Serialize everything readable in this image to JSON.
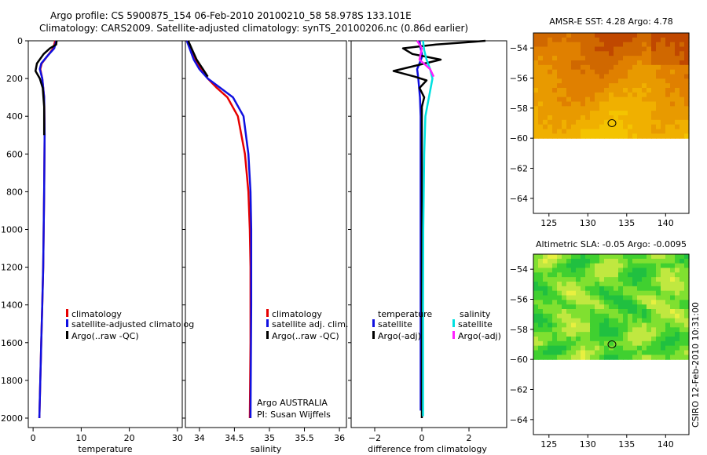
{
  "header": {
    "line1": "Argo profile: CS 5900875_154 06-Feb-2010 20100210_58 58.978S 133.101E",
    "line2": "Climatology: CARS2009. Satellite-adjusted climatology: synTS_20100206.nc (0.86d earlier)"
  },
  "footer": {
    "side_label": "CSIRO 12-Feb-2010 10:31:00"
  },
  "colors": {
    "climatology": "#e60000",
    "satellite": "#1010e0",
    "argo": "#000000",
    "sat_salinity": "#00e0e0",
    "argo_salinity": "#ff20ff"
  },
  "chart_data": [
    {
      "type": "line",
      "id": "temperature",
      "xlabel": "temperature",
      "xlim": [
        -1,
        31
      ],
      "ylim": [
        0,
        2050
      ],
      "xticks": [
        0,
        10,
        20,
        30
      ],
      "yticks": [
        0,
        200,
        400,
        600,
        800,
        1000,
        1200,
        1400,
        1600,
        1800,
        2000
      ],
      "legend": [
        "climatology",
        "satellite-adjusted climatolog",
        "Argo(..raw -QC)"
      ],
      "series": [
        {
          "name": "climatology",
          "x": [
            4.6,
            4.2,
            3.0,
            1.8,
            1.5,
            1.9,
            2.3,
            2.4,
            2.3,
            2.2,
            2.1,
            1.9,
            1.7,
            1.5,
            1.3
          ],
          "y": [
            0,
            40,
            80,
            120,
            150,
            200,
            300,
            500,
            800,
            1000,
            1200,
            1400,
            1600,
            1800,
            2000
          ]
        },
        {
          "name": "satellite-adjusted",
          "x": [
            4.8,
            4.4,
            3.0,
            1.7,
            1.4,
            1.9,
            2.3,
            2.4,
            2.3,
            2.2,
            2.1,
            1.9,
            1.7,
            1.5,
            1.3
          ],
          "y": [
            0,
            40,
            80,
            120,
            150,
            200,
            300,
            500,
            800,
            1000,
            1200,
            1400,
            1600,
            1800,
            2000
          ]
        },
        {
          "name": "Argo",
          "x": [
            4.9,
            4.8,
            3.5,
            2.2,
            0.8,
            0.5,
            1.4,
            2.0,
            2.3,
            2.3
          ],
          "y": [
            0,
            20,
            40,
            70,
            120,
            160,
            200,
            250,
            350,
            500
          ]
        }
      ]
    },
    {
      "type": "line",
      "id": "salinity",
      "xlabel": "salinity",
      "xlim": [
        33.8,
        36.1
      ],
      "ylim": [
        0,
        2050
      ],
      "xticks": [
        34,
        34.5,
        35,
        35.5,
        36
      ],
      "yticks": [
        0,
        200,
        400,
        600,
        800,
        1000,
        1200,
        1400,
        1600,
        1800,
        2000
      ],
      "legend": [
        "climatology",
        "satellite adj. clim.",
        "Argo(..raw -QC)"
      ],
      "annotation": [
        "Argo AUSTRALIA",
        "PI: Susan Wijffels"
      ],
      "series": [
        {
          "name": "climatology",
          "x": [
            33.82,
            33.88,
            33.95,
            34.02,
            34.12,
            34.25,
            34.4,
            34.55,
            34.65,
            34.7,
            34.72,
            34.73,
            34.73,
            34.72
          ],
          "y": [
            0,
            50,
            100,
            150,
            200,
            250,
            300,
            400,
            600,
            800,
            1000,
            1200,
            1600,
            2000
          ]
        },
        {
          "name": "satellite-adjusted",
          "x": [
            33.82,
            33.87,
            33.92,
            34.0,
            34.12,
            34.3,
            34.48,
            34.63,
            34.7,
            34.73,
            34.74,
            34.74,
            34.73
          ],
          "y": [
            0,
            50,
            100,
            150,
            200,
            250,
            300,
            400,
            600,
            800,
            1000,
            1400,
            2000
          ]
        },
        {
          "name": "Argo",
          "x": [
            33.84,
            33.9,
            33.96,
            34.05,
            34.12
          ],
          "y": [
            0,
            50,
            100,
            150,
            190
          ]
        }
      ]
    },
    {
      "type": "line",
      "id": "difference",
      "xlabel": "difference from climatology",
      "xlim": [
        -3,
        3.6
      ],
      "ylim": [
        0,
        2050
      ],
      "xticks": [
        -2,
        0,
        2
      ],
      "yticks": [
        0,
        200,
        400,
        600,
        800,
        1000,
        1200,
        1400,
        1600,
        1800,
        2000
      ],
      "legend_title_left": "temperature",
      "legend_title_right": "salinity",
      "legend": [
        "satellite",
        "Argo(-adj)",
        "satellite",
        "Argo(-adj)"
      ],
      "series": [
        {
          "name": "temperature satellite",
          "x": [
            -0.1,
            -0.05,
            0.02,
            -0.1,
            -0.2,
            -0.15,
            -0.08,
            -0.05,
            -0.05,
            -0.05,
            -0.05,
            -0.05,
            -0.05,
            -0.05,
            -0.05
          ],
          "y": [
            0,
            40,
            80,
            120,
            150,
            200,
            300,
            400,
            600,
            800,
            1000,
            1200,
            1400,
            1600,
            1960
          ]
        },
        {
          "name": "temperature Argo",
          "x": [
            2.7,
            2.2,
            0.6,
            -0.8,
            -0.4,
            0.8,
            -1.2,
            -0.3,
            0.2,
            -0.1,
            0.1,
            0.0,
            0.0,
            0.0,
            0.0,
            0.0,
            0.0
          ],
          "y": [
            0,
            5,
            20,
            40,
            70,
            100,
            160,
            190,
            210,
            250,
            300,
            350,
            500,
            800,
            1200,
            1600,
            2000
          ]
        },
        {
          "name": "salinity satellite",
          "x": [
            0.05,
            0.1,
            0.2,
            0.35,
            0.45,
            0.3,
            0.15,
            0.1,
            0.08,
            0.06,
            0.05,
            0.05
          ],
          "y": [
            0,
            50,
            100,
            150,
            200,
            300,
            400,
            600,
            800,
            1000,
            1400,
            1990
          ]
        },
        {
          "name": "salinity Argo",
          "x": [
            -0.2,
            0.0,
            -0.1,
            0.35,
            0.5
          ],
          "y": [
            0,
            40,
            100,
            150,
            190
          ]
        }
      ]
    },
    {
      "type": "heatmap",
      "id": "sst-map",
      "title": "AMSR-E SST: 4.28 Argo: 4.78",
      "xlim": [
        123,
        143
      ],
      "ylim": [
        -65,
        -53
      ],
      "xticks": [
        125,
        130,
        135,
        140
      ],
      "yticks": [
        -54,
        -56,
        -58,
        -60,
        -62,
        -64
      ],
      "data_extent": {
        "lat_min": -60,
        "lat_max": -53
      },
      "marker": {
        "lon": 133.1,
        "lat": -59.0
      },
      "colors": [
        "#c04800",
        "#d06800",
        "#e08000",
        "#e89a00",
        "#f0b000",
        "#f4c400"
      ]
    },
    {
      "type": "heatmap",
      "id": "sla-map",
      "title": "Altimetric SLA: -0.05 Argo: -0.0095",
      "xlim": [
        123,
        143
      ],
      "ylim": [
        -65,
        -53
      ],
      "xticks": [
        125,
        130,
        135,
        140
      ],
      "yticks": [
        -54,
        -56,
        -58,
        -60,
        -62,
        -64
      ],
      "data_extent": {
        "lat_min": -60,
        "lat_max": -53
      },
      "marker": {
        "lon": 133.1,
        "lat": -59.0
      },
      "colors": [
        "#00c878",
        "#20c040",
        "#40d030",
        "#80e030",
        "#c0e840",
        "#e8f040"
      ]
    }
  ]
}
